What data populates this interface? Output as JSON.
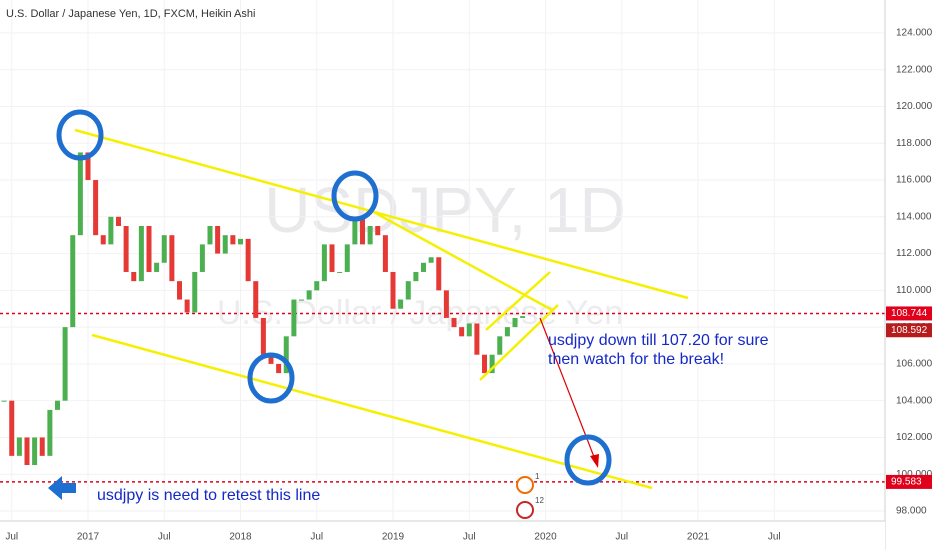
{
  "chart_data": {
    "type": "candlestick",
    "title": "U.S. Dollar / Japanese Yen, 1D, FXCM, Heikin Ashi",
    "watermark": "USDJPY, 1D",
    "watermark_subtitle": "U.S. Dollar / Japanese Yen",
    "x": [
      2016.45,
      2016.5,
      2016.55,
      2016.6,
      2016.65,
      2016.7,
      2016.75,
      2016.8,
      2016.85,
      2016.9,
      2016.95,
      2017.0,
      2017.05,
      2017.1,
      2017.15,
      2017.2,
      2017.25,
      2017.3,
      2017.35,
      2017.4,
      2017.45,
      2017.5,
      2017.55,
      2017.6,
      2017.65,
      2017.7,
      2017.75,
      2017.8,
      2017.85,
      2017.9,
      2017.95,
      2018.0,
      2018.05,
      2018.1,
      2018.15,
      2018.2,
      2018.25,
      2018.3,
      2018.35,
      2018.4,
      2018.45,
      2018.5,
      2018.55,
      2018.6,
      2018.65,
      2018.7,
      2018.75,
      2018.8,
      2018.85,
      2018.9,
      2018.95,
      2019.0,
      2019.05,
      2019.1,
      2019.15,
      2019.2,
      2019.25,
      2019.3,
      2019.35,
      2019.4,
      2019.45,
      2019.5,
      2019.55,
      2019.6,
      2019.65,
      2019.7,
      2019.75,
      2019.8,
      2019.85
    ],
    "values": [
      104,
      101,
      102,
      100.5,
      102,
      101,
      103.5,
      104,
      108,
      113,
      117.5,
      116,
      113,
      112.5,
      114,
      113.5,
      111,
      110.5,
      113.5,
      111,
      111.5,
      113,
      110.5,
      109.5,
      108.8,
      111,
      112.5,
      113.5,
      112,
      113,
      112.5,
      112.8,
      110.5,
      108.5,
      106.5,
      106,
      105.5,
      107.5,
      109.5,
      109.5,
      110,
      110.5,
      112.5,
      111,
      111,
      112.5,
      114,
      112.5,
      113.5,
      113,
      111,
      109,
      109.5,
      110.5,
      111,
      111.5,
      111.8,
      110,
      108.5,
      108,
      107.5,
      108.2,
      106.5,
      105.5,
      106.5,
      107.5,
      108,
      108.5,
      108.6
    ],
    "up_color": "#4caf50",
    "down_color": "#e53935",
    "xlim": [
      2016.423,
      2022.226
    ],
    "xticks": [
      {
        "value": 2016.5,
        "label": "Jul"
      },
      {
        "value": 2017,
        "label": "2017"
      },
      {
        "value": 2017.5,
        "label": "Jul"
      },
      {
        "value": 2018,
        "label": "2018"
      },
      {
        "value": 2018.5,
        "label": "Jul"
      },
      {
        "value": 2019,
        "label": "2019"
      },
      {
        "value": 2019.5,
        "label": "Jul"
      },
      {
        "value": 2020,
        "label": "2020"
      },
      {
        "value": 2020.5,
        "label": "Jul"
      },
      {
        "value": 2021,
        "label": "2021"
      },
      {
        "value": 2021.5,
        "label": "Jul"
      }
    ],
    "ylim": [
      95.88,
      125.79
    ],
    "yticks": [
      {
        "value": 98,
        "label": "98.000"
      },
      {
        "value": 100,
        "label": "100.000"
      },
      {
        "value": 102,
        "label": "102.000"
      },
      {
        "value": 104,
        "label": "104.000"
      },
      {
        "value": 106,
        "label": "106.000"
      },
      {
        "value": 108,
        "label": "108.000"
      },
      {
        "value": 110,
        "label": "110.000"
      },
      {
        "value": 112,
        "label": "112.000"
      },
      {
        "value": 114,
        "label": "114.000"
      },
      {
        "value": 116,
        "label": "116.000"
      },
      {
        "value": 118,
        "label": "118.000"
      },
      {
        "value": 120,
        "label": "120.000"
      },
      {
        "value": 122,
        "label": "122.000"
      },
      {
        "value": 124,
        "label": "124.000"
      }
    ],
    "price_lines": [
      {
        "value": 108.744,
        "label": "108.744",
        "color": "#e0001b"
      },
      {
        "value": 99.583,
        "label": "99.583",
        "color": "#e0001b"
      }
    ],
    "last_price": {
      "value": 108.592,
      "label": "108.592",
      "color": "#b71c1c"
    },
    "annotations": [
      "usdjpy down till 107.20 for sure",
      "then watch for the break!",
      "usdjpy is need to retest this line"
    ],
    "events": [
      "1",
      "12"
    ]
  }
}
